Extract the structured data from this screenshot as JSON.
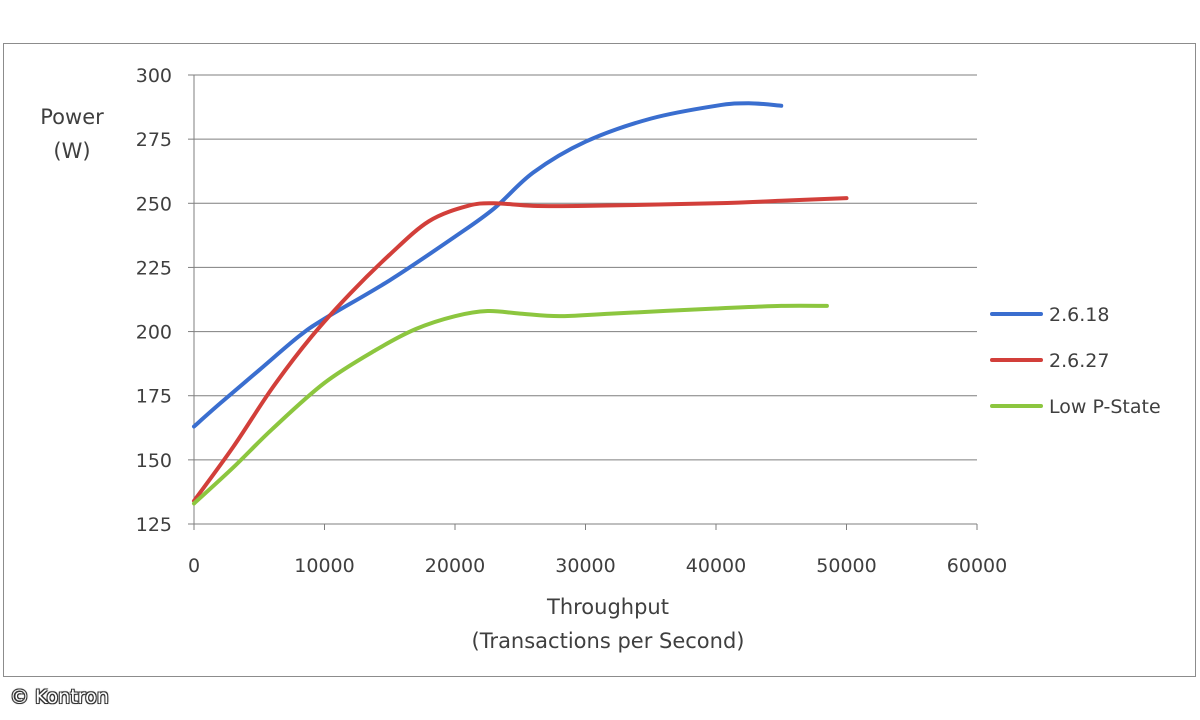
{
  "chart_data": {
    "type": "line",
    "ylabel_lines": [
      "Power",
      "(W)"
    ],
    "xlabel_lines": [
      "Throughput",
      "(Transactions per Second)"
    ],
    "xlim": [
      0,
      60000
    ],
    "ylim": [
      125,
      300
    ],
    "x_ticks": [
      "0",
      "10000",
      "20000",
      "30000",
      "40000",
      "50000",
      "60000"
    ],
    "y_ticks": [
      "125",
      "150",
      "175",
      "200",
      "225",
      "250",
      "275",
      "300"
    ],
    "grid": "horizontal",
    "legend_position": "right",
    "series": [
      {
        "name": "2.6.18",
        "color": "#3a6ecf",
        "points": [
          [
            0,
            163
          ],
          [
            2000,
            172
          ],
          [
            5000,
            185
          ],
          [
            8000,
            198
          ],
          [
            10000,
            205
          ],
          [
            15000,
            220
          ],
          [
            20000,
            237
          ],
          [
            23000,
            248
          ],
          [
            26000,
            262
          ],
          [
            30000,
            274
          ],
          [
            35000,
            283
          ],
          [
            40000,
            288
          ],
          [
            42500,
            289
          ],
          [
            45000,
            288
          ]
        ]
      },
      {
        "name": "2.6.27",
        "color": "#d23f3a",
        "points": [
          [
            0,
            134
          ],
          [
            3000,
            155
          ],
          [
            6000,
            178
          ],
          [
            9000,
            198
          ],
          [
            12000,
            215
          ],
          [
            15000,
            230
          ],
          [
            18000,
            243
          ],
          [
            21000,
            249
          ],
          [
            23000,
            250
          ],
          [
            26000,
            249
          ],
          [
            30000,
            249
          ],
          [
            40000,
            250
          ],
          [
            45000,
            251
          ],
          [
            50000,
            252
          ]
        ]
      },
      {
        "name": "Low P-State",
        "color": "#8cc63f",
        "points": [
          [
            0,
            133
          ],
          [
            3000,
            147
          ],
          [
            6000,
            162
          ],
          [
            10000,
            180
          ],
          [
            14000,
            193
          ],
          [
            17000,
            201
          ],
          [
            20000,
            206
          ],
          [
            22500,
            208
          ],
          [
            25000,
            207
          ],
          [
            28000,
            206
          ],
          [
            32000,
            207
          ],
          [
            40000,
            209
          ],
          [
            45000,
            210
          ],
          [
            48500,
            210
          ]
        ]
      }
    ]
  },
  "credit": "© Kontron"
}
